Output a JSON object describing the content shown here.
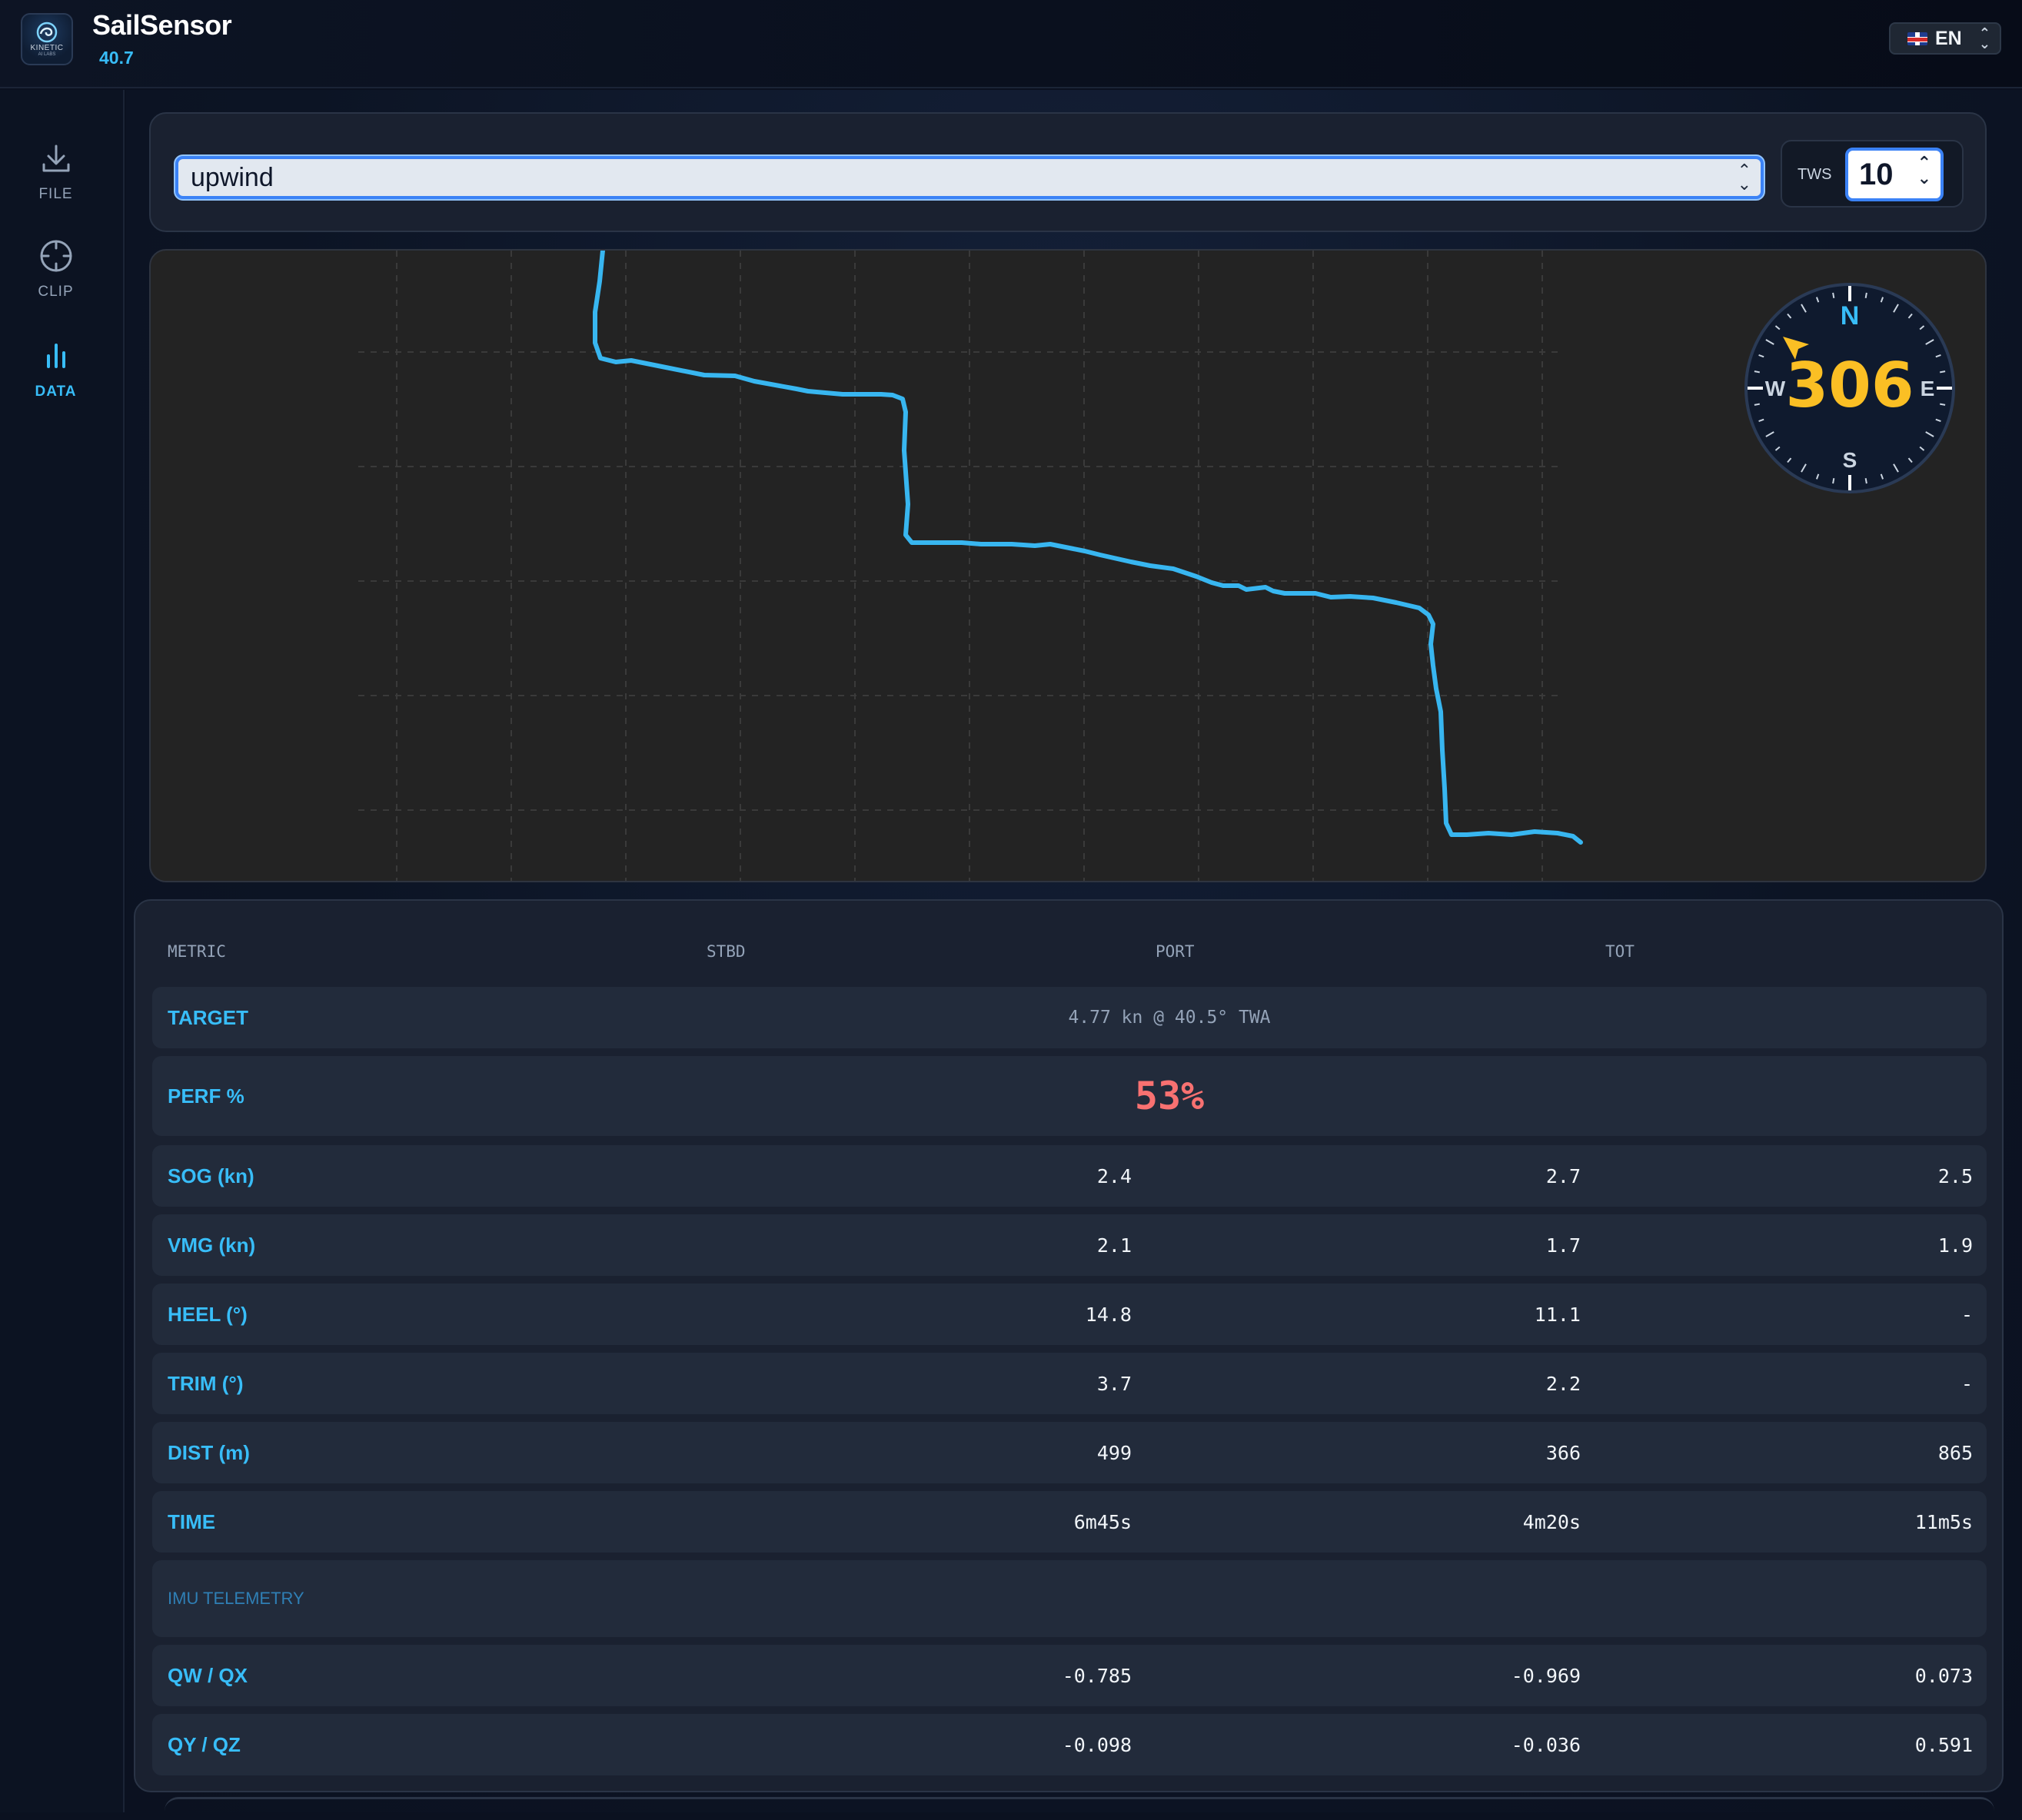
{
  "app": {
    "name": "SailSensor",
    "version": "40.7",
    "logo_text": "KINETIC",
    "logo_sub": "AI LABS"
  },
  "language": {
    "code": "EN",
    "flag": "uk-flag-icon"
  },
  "sidebar": {
    "items": [
      {
        "label": "FILE",
        "icon": "download-icon",
        "active": false
      },
      {
        "label": "CLIP",
        "icon": "crosshair-icon",
        "active": false
      },
      {
        "label": "DATA",
        "icon": "bar-chart-icon",
        "active": true
      }
    ]
  },
  "controls": {
    "mode": "upwind",
    "tws_label": "TWS",
    "tws_value": "10"
  },
  "compass": {
    "heading": "306",
    "n": "N",
    "e": "E",
    "s": "S",
    "w": "W",
    "accent": "#fbbf24"
  },
  "table": {
    "headers": {
      "metric": "METRIC",
      "stbd": "STBD",
      "port": "PORT",
      "tot": "TOT"
    },
    "target": {
      "label": "TARGET",
      "value": "4.77 kn @ 40.5° TWA"
    },
    "perf": {
      "label": "PERF %",
      "value": "53%"
    },
    "rows": [
      {
        "label": "SOG (kn)",
        "stbd": "2.4",
        "port": "2.7",
        "tot": "2.5"
      },
      {
        "label": "VMG (kn)",
        "stbd": "2.1",
        "port": "1.7",
        "tot": "1.9"
      },
      {
        "label": "HEEL (°)",
        "stbd": "14.8",
        "port": "11.1",
        "tot": "-"
      },
      {
        "label": "TRIM (°)",
        "stbd": "3.7",
        "port": "2.2",
        "tot": "-"
      },
      {
        "label": "DIST (m)",
        "stbd": "499",
        "port": "366",
        "tot": "865"
      },
      {
        "label": "TIME",
        "stbd": "6m45s",
        "port": "4m20s",
        "tot": "11m5s"
      }
    ],
    "section": "IMU TELEMETRY",
    "imu_rows": [
      {
        "label": "QW / QX",
        "stbd": "-0.785",
        "port": "-0.969",
        "tot": "0.073"
      },
      {
        "label": "QY / QZ",
        "stbd": "-0.098",
        "port": "-0.036",
        "tot": "0.591"
      }
    ]
  },
  "colors": {
    "accent": "#38bdf8",
    "track": "#38b6f0",
    "perf_bad": "#f87171",
    "heading": "#fbbf24"
  }
}
